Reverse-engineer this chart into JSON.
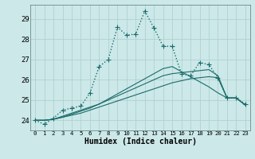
{
  "xlabel": "Humidex (Indice chaleur)",
  "xlim": [
    -0.5,
    23.5
  ],
  "ylim": [
    23.5,
    29.7
  ],
  "yticks": [
    24,
    25,
    26,
    27,
    28,
    29
  ],
  "xticks": [
    0,
    1,
    2,
    3,
    4,
    5,
    6,
    7,
    8,
    9,
    10,
    11,
    12,
    13,
    14,
    15,
    16,
    17,
    18,
    19,
    20,
    21,
    22,
    23
  ],
  "bg_color": "#cce8e8",
  "grid_color": "#aacece",
  "line_color": "#1a6b6b",
  "series": [
    {
      "x": [
        0,
        1,
        2,
        3,
        4,
        5,
        6,
        7,
        8,
        9,
        10,
        11,
        12,
        13,
        14,
        15,
        16,
        17,
        18,
        19,
        20,
        21,
        22,
        23
      ],
      "y": [
        24.0,
        23.8,
        24.1,
        24.5,
        24.6,
        24.7,
        25.35,
        26.65,
        27.0,
        28.6,
        28.2,
        28.25,
        29.4,
        28.55,
        27.65,
        27.65,
        26.3,
        26.2,
        26.85,
        26.75,
        26.1,
        25.1,
        25.1,
        24.8
      ],
      "linestyle": ":",
      "linewidth": 1.0,
      "marker": "+",
      "markersize": 4
    },
    {
      "x": [
        0,
        1,
        2,
        3,
        4,
        5,
        6,
        7,
        8,
        9,
        10,
        11,
        12,
        13,
        14,
        15,
        16,
        17,
        18,
        19,
        20,
        21,
        22,
        23
      ],
      "y": [
        24.0,
        24.0,
        24.05,
        24.15,
        24.25,
        24.35,
        24.5,
        24.65,
        24.8,
        24.95,
        25.1,
        25.25,
        25.4,
        25.55,
        25.7,
        25.85,
        25.95,
        26.05,
        26.1,
        26.15,
        26.1,
        25.1,
        25.1,
        24.75
      ],
      "linestyle": "-",
      "linewidth": 0.8,
      "marker": null,
      "markersize": 0
    },
    {
      "x": [
        0,
        1,
        2,
        3,
        4,
        5,
        6,
        7,
        8,
        9,
        10,
        11,
        12,
        13,
        14,
        15,
        16,
        17,
        18,
        19,
        20,
        21,
        22,
        23
      ],
      "y": [
        24.0,
        24.0,
        24.05,
        24.2,
        24.35,
        24.5,
        24.65,
        24.8,
        25.0,
        25.2,
        25.4,
        25.6,
        25.8,
        26.0,
        26.2,
        26.3,
        26.35,
        26.4,
        26.45,
        26.5,
        26.2,
        25.1,
        25.1,
        24.75
      ],
      "linestyle": "-",
      "linewidth": 0.8,
      "marker": null,
      "markersize": 0
    },
    {
      "x": [
        0,
        1,
        2,
        3,
        4,
        5,
        6,
        7,
        8,
        9,
        10,
        11,
        12,
        13,
        14,
        15,
        16,
        17,
        18,
        19,
        20,
        21,
        22,
        23
      ],
      "y": [
        24.0,
        24.0,
        24.05,
        24.15,
        24.3,
        24.45,
        24.6,
        24.8,
        25.05,
        25.3,
        25.55,
        25.8,
        26.05,
        26.3,
        26.55,
        26.65,
        26.4,
        26.15,
        25.9,
        25.65,
        25.35,
        25.1,
        25.1,
        24.75
      ],
      "linestyle": "-",
      "linewidth": 0.8,
      "marker": null,
      "markersize": 0
    }
  ]
}
